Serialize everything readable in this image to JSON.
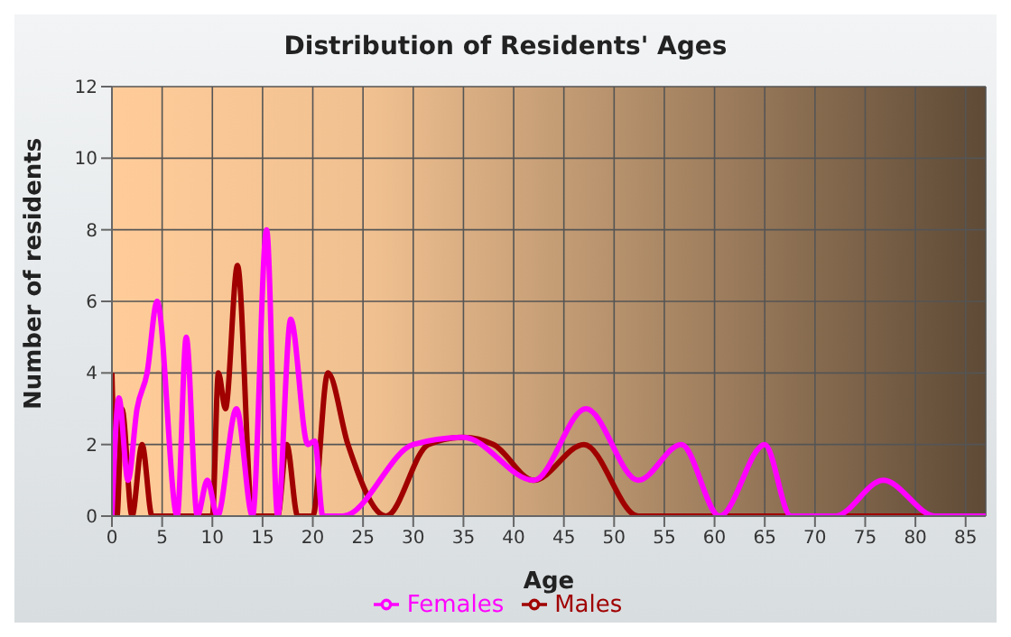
{
  "chart_data": {
    "type": "line",
    "title": "Distribution of Residents' Ages",
    "xlabel": "Age",
    "ylabel": "Number of residents",
    "xlim": [
      0,
      87
    ],
    "xticks": [
      0,
      5,
      10,
      15,
      20,
      25,
      30,
      35,
      40,
      45,
      50,
      55,
      60,
      65,
      70,
      75,
      80,
      85
    ],
    "ylim": [
      0,
      12
    ],
    "yticks": [
      0,
      2,
      4,
      6,
      8,
      10,
      12
    ],
    "grid": true,
    "legend": "bottom",
    "marker": "none",
    "line_style": "solid",
    "series": [
      {
        "name": "Males",
        "color": "#a00000",
        "x": [
          0,
          0.5,
          1,
          2,
          3,
          4,
          5,
          10,
          10.6,
          11.3,
          12.5,
          14,
          16.5,
          17.4,
          18.5,
          20,
          21.5,
          23.5,
          27.3,
          31.5,
          35,
          38,
          42,
          47,
          52.4,
          55,
          87
        ],
        "values": [
          4,
          0,
          3,
          0,
          2,
          0,
          0,
          0,
          4,
          3,
          7,
          0,
          0,
          2,
          0,
          0,
          4,
          2,
          0,
          2,
          2.2,
          2,
          1,
          2,
          0,
          0,
          0
        ]
      },
      {
        "name": "Females",
        "color": "#ff00ff",
        "x": [
          0,
          0.7,
          1.6,
          2.5,
          3.5,
          4.5,
          6.5,
          7.4,
          8.5,
          9.5,
          10.5,
          12.4,
          14,
          15.4,
          16.5,
          17.8,
          19.5,
          20.2,
          21,
          23,
          30,
          35,
          42,
          47.2,
          52.4,
          56.7,
          60.5,
          65,
          67.6,
          72,
          76.8,
          82,
          87
        ],
        "values": [
          0,
          3.3,
          1,
          3,
          4,
          6,
          0,
          5,
          0,
          1,
          0,
          3,
          0,
          8,
          0,
          5.5,
          2,
          2.1,
          0,
          0,
          2,
          2.2,
          1,
          3,
          1,
          2,
          0,
          2,
          0,
          0,
          1,
          0,
          0
        ]
      }
    ]
  }
}
